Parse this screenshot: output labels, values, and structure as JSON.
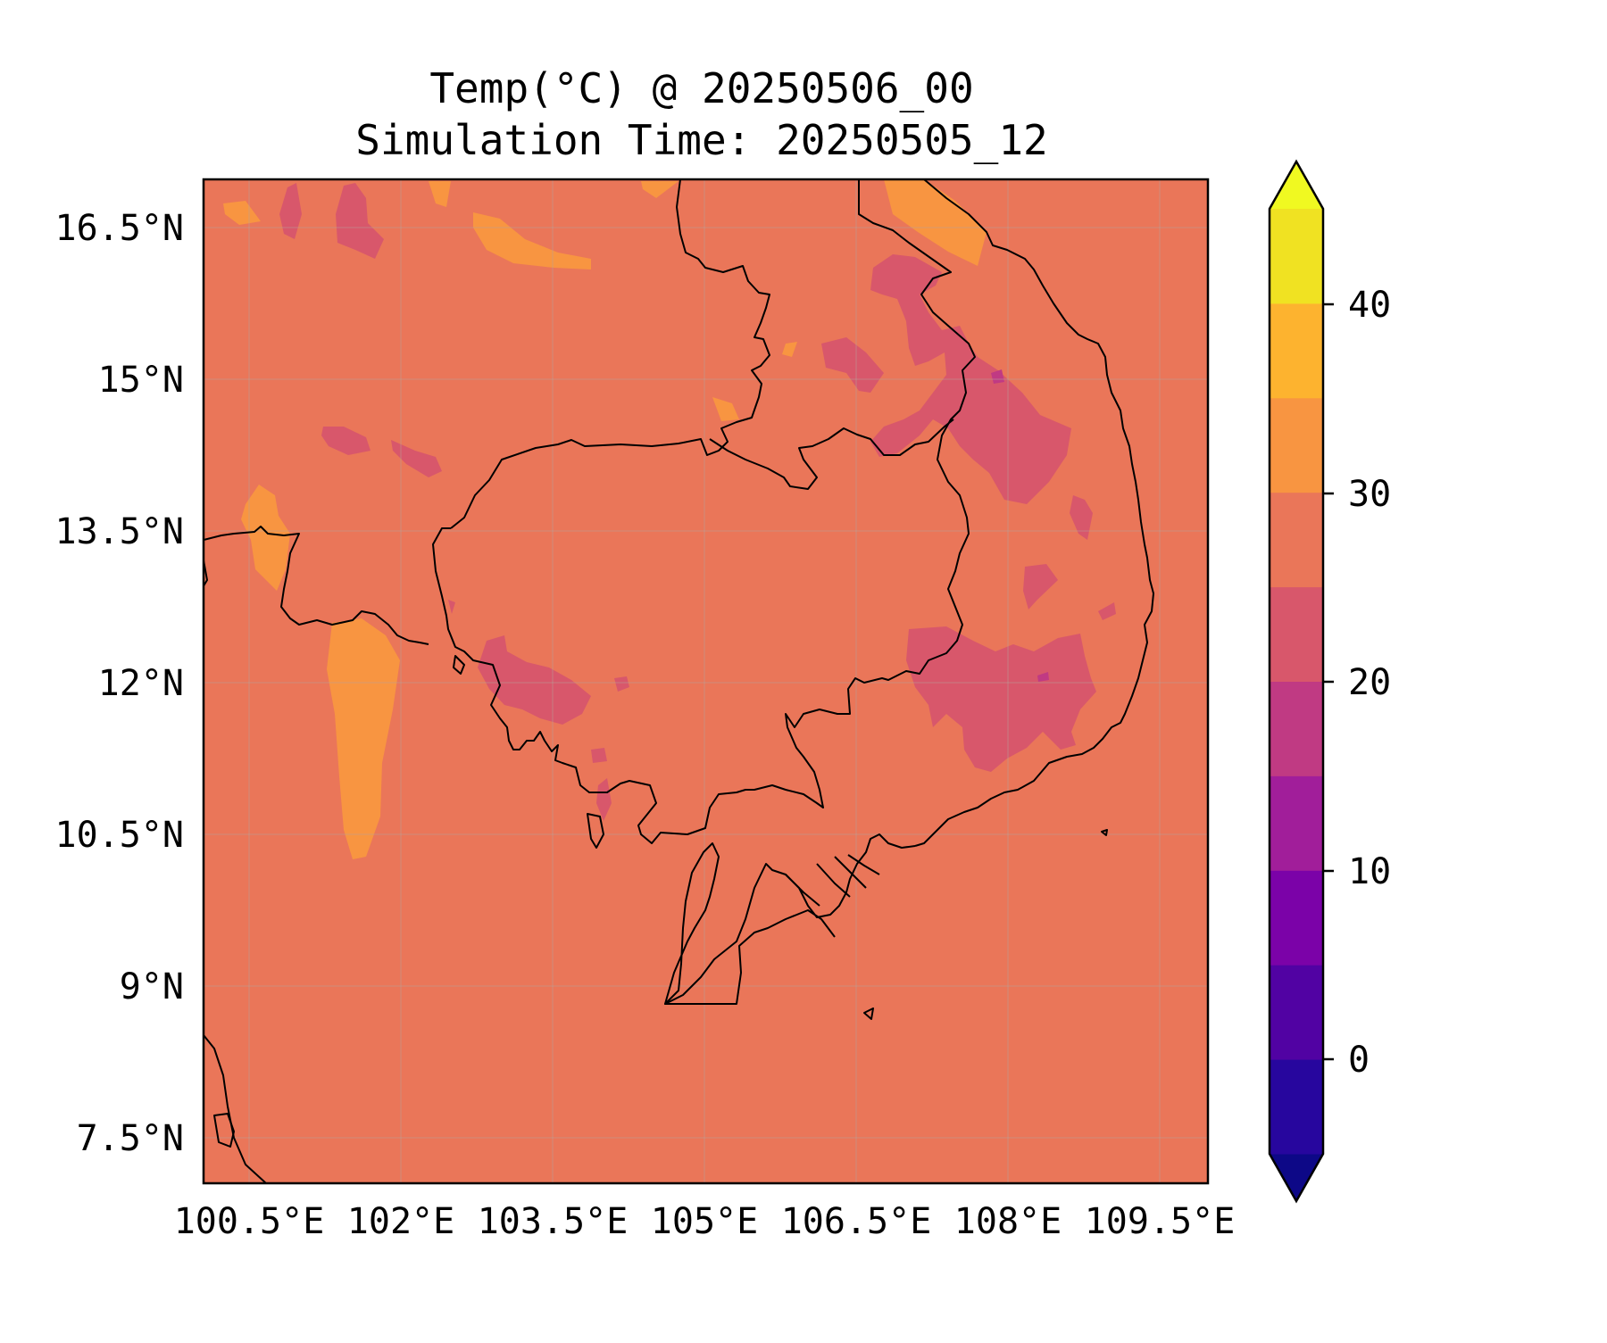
{
  "map": {
    "title_line1": "Temp(°C) @ 20250506_00",
    "title_line2": "Simulation Time: 20250505_12",
    "lon_ticks": [
      "100.5°E",
      "102°E",
      "103.5°E",
      "105°E",
      "106.5°E",
      "108°E",
      "109.5°E"
    ],
    "lat_ticks": [
      "16.5°N",
      "15°N",
      "13.5°N",
      "12°N",
      "10.5°N",
      "9°N",
      "7.5°N"
    ],
    "background_color": "#ea7659",
    "gridlines": true
  },
  "colorbar": {
    "tick_labels": [
      "40",
      "30",
      "20",
      "10",
      "0"
    ],
    "extend": "both",
    "levels": [
      -5,
      0,
      5,
      10,
      15,
      20,
      25,
      30,
      35,
      40,
      45
    ],
    "colors": [
      "#0d0887",
      "#27069e",
      "#5102a3",
      "#7b02a8",
      "#a11e9a",
      "#c03a83",
      "#d8576b",
      "#ea7659",
      "#f89541",
      "#fdb32f",
      "#f0e222",
      "#f0f921"
    ]
  }
}
